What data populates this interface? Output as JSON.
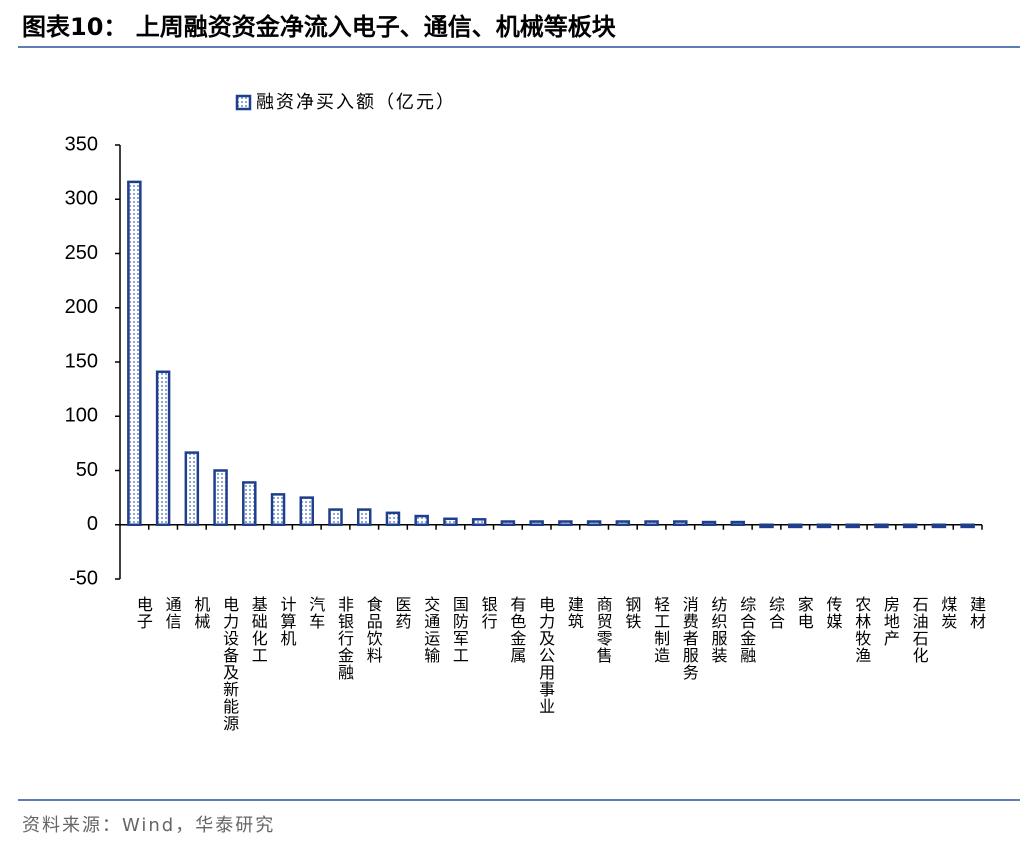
{
  "chart_data": {
    "type": "bar",
    "title": "图表10：  上周融资资金净流入电子、通信、机械等板块",
    "source": "资料来源：Wind，华泰研究",
    "categories": [
      "电子",
      "通信",
      "机械",
      "电力设备及新能源",
      "基础化工",
      "计算机",
      "汽车",
      "非银行金融",
      "食品饮料",
      "医药",
      "交通运输",
      "国防军工",
      "银行",
      "有色金属",
      "电力及公用事业",
      "建筑",
      "商贸零售",
      "钢铁",
      "轻工制造",
      "消费者服务",
      "纺织服装",
      "综合金融",
      "综合",
      "家电",
      "传媒",
      "农林牧渔",
      "房地产",
      "石油石化",
      "煤炭",
      "建材"
    ],
    "series": [
      {
        "name": "融资净买入额（亿元）",
        "color": "#1f3f8c",
        "values": [
          316,
          141,
          66.5,
          50,
          39,
          28,
          25,
          14,
          14,
          11,
          8,
          5.5,
          5,
          3,
          3,
          3,
          3,
          3,
          3,
          3,
          2.5,
          2.5,
          -2,
          -2,
          -2,
          -2,
          -2,
          -2,
          -2,
          -2
        ]
      }
    ],
    "ylim": [
      -50,
      350
    ],
    "yticks": [
      -50,
      0,
      50,
      100,
      150,
      200,
      250,
      300,
      350
    ]
  }
}
